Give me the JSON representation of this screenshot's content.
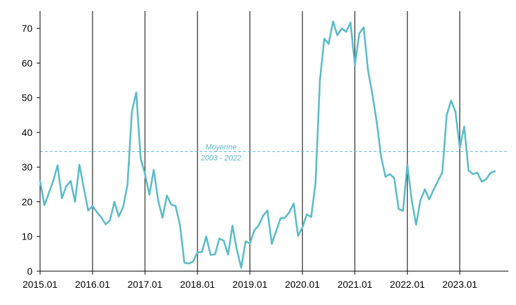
{
  "chart_data": {
    "type": "line",
    "title": "",
    "xlabel": "",
    "ylabel": "",
    "ylim": [
      0,
      75
    ],
    "yticks": [
      0,
      10,
      20,
      30,
      40,
      50,
      60,
      70
    ],
    "x_tick_labels": [
      "2015.01",
      "2016.01",
      "2017.01",
      "2018.01",
      "2019.01",
      "2020.01",
      "2021.01",
      "2022.01",
      "2023.01"
    ],
    "grid": "vertical lines at each January",
    "line_color": "#5bbcc9",
    "reference_line": {
      "value": 34.5,
      "label_line1": "Moyenne",
      "label_line2": "2003 - 2022",
      "color": "#5bbcc9",
      "style": "dashed"
    },
    "series": [
      {
        "name": "",
        "start": "2015.01",
        "frequency": "monthly",
        "values": [
          26,
          19,
          22.5,
          26,
          30.5,
          21,
          24.5,
          26,
          20,
          30.7,
          24,
          17.5,
          18.8,
          17,
          15.5,
          13.5,
          14.7,
          20,
          15.8,
          18.5,
          25,
          46,
          51.5,
          32.5,
          28,
          22,
          29.2,
          20.5,
          15.4,
          21.8,
          19.2,
          18.8,
          13.3,
          2.5,
          2.2,
          2.8,
          5.4,
          5.5,
          10,
          4.7,
          4.8,
          9.4,
          8.8,
          4.8,
          13.1,
          6.2,
          1,
          8.6,
          8,
          11.8,
          13.2,
          16,
          17.5,
          7.9,
          11.6,
          15.2,
          15.4,
          17,
          19.5,
          10.2,
          12.6,
          16.4,
          15.6,
          25.5,
          55,
          67,
          65.5,
          72,
          68,
          70,
          69,
          71.7,
          59.5,
          68.5,
          70.3,
          58,
          51,
          43,
          33,
          27.2,
          28,
          26.8,
          18,
          17.4,
          30.6,
          20.5,
          13.4,
          20.5,
          23.6,
          20.7,
          23.5,
          26,
          28.5,
          45,
          49.2,
          46,
          35.5,
          41.7,
          29,
          28,
          28.4,
          25.8,
          26.5,
          28.3,
          28.8
        ]
      }
    ]
  }
}
